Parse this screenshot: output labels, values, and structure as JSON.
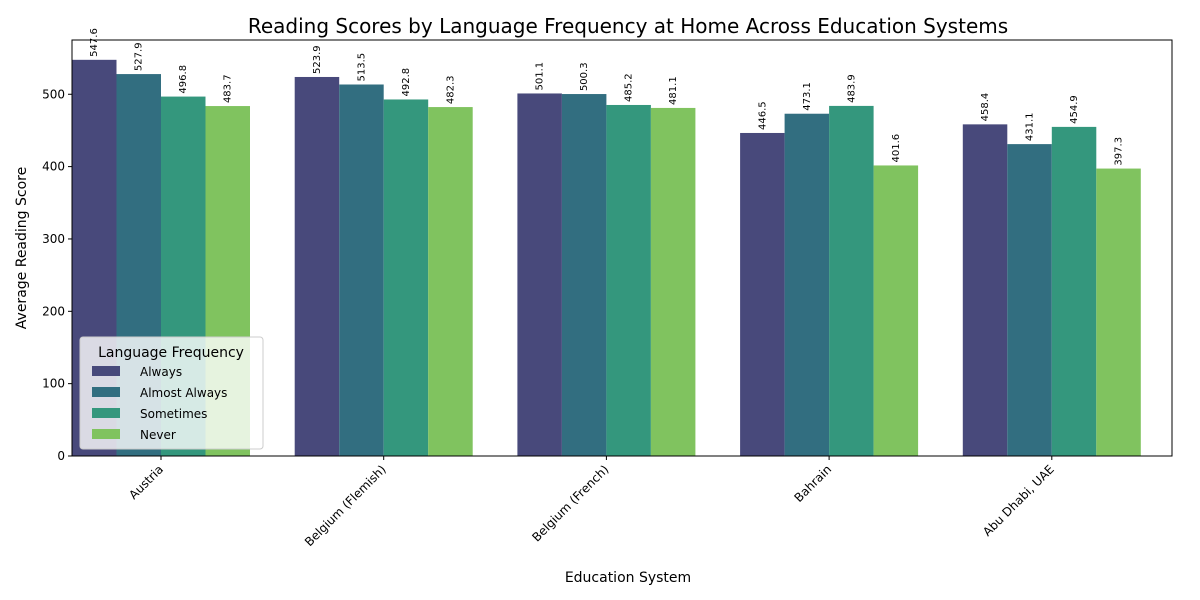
{
  "chart_data": {
    "type": "bar",
    "title": "Reading Scores by Language Frequency at Home Across Education Systems",
    "xlabel": "Education System",
    "ylabel": "Average Reading Score",
    "categories": [
      "Austria",
      "Belgium (Flemish)",
      "Belgium (French)",
      "Bahrain",
      "Abu Dhabi, UAE"
    ],
    "series": [
      {
        "name": "Always",
        "color": "#48497b",
        "values": [
          547.6,
          523.9,
          501.1,
          446.5,
          458.4
        ]
      },
      {
        "name": "Almost Always",
        "color": "#326e80",
        "values": [
          527.9,
          513.5,
          500.3,
          473.1,
          431.1
        ]
      },
      {
        "name": "Sometimes",
        "color": "#34977d",
        "values": [
          496.8,
          492.8,
          485.2,
          483.9,
          454.9
        ]
      },
      {
        "name": "Never",
        "color": "#80c35f",
        "values": [
          483.7,
          482.3,
          481.1,
          401.6,
          397.3
        ]
      }
    ],
    "ylim": [
      0,
      575
    ],
    "yticks": [
      0,
      100,
      200,
      300,
      400,
      500
    ],
    "legend": {
      "title": "Language Frequency",
      "placement": "lower-left"
    },
    "grid": false
  }
}
